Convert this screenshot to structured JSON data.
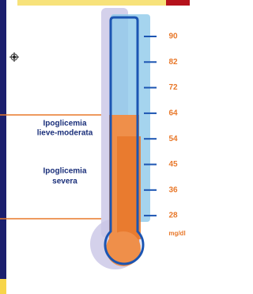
{
  "scale": {
    "ticks": [
      90,
      82,
      72,
      64,
      54,
      45,
      36,
      28
    ],
    "unit": "mg/dl"
  },
  "zones": [
    {
      "lines": [
        "Ipoglicemia",
        "lieve-moderata"
      ]
    },
    {
      "lines": [
        "Ipoglicemia",
        "severa"
      ]
    }
  ]
}
